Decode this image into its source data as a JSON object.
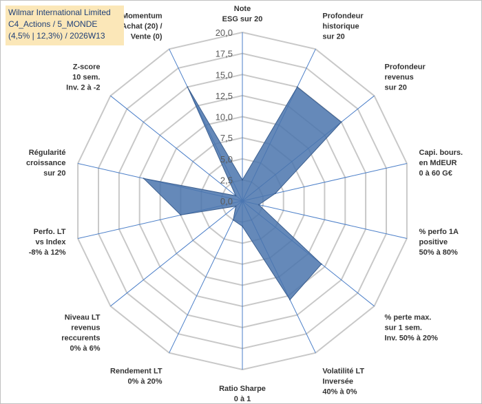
{
  "header": {
    "company": "Wilmar International Limited",
    "category": "C4_Actions / 5_MONDE",
    "stats": "(4,5% | 12,3%) / 2026W13"
  },
  "chart_data": {
    "type": "radar",
    "rmin": 0,
    "rmax": 20,
    "ticks": [
      "0,0",
      "2,5",
      "5,0",
      "7,5",
      "10,0",
      "12,5",
      "15,0",
      "17,5",
      "20,0"
    ],
    "grid": true,
    "axes": [
      {
        "label": [
          "Note",
          "ESG sur 20"
        ],
        "value": 2.5
      },
      {
        "label": [
          "Profondeur",
          "historique",
          "sur 20"
        ],
        "value": 15.0
      },
      {
        "label": [
          "Profondeur",
          "revenus",
          "sur 20"
        ],
        "value": 15.0
      },
      {
        "label": [
          "Capi. bours.",
          "en MdEUR",
          "0 à 60 G€"
        ],
        "value": 4.0
      },
      {
        "label": [
          "% perfo 1A",
          "positive",
          "50% à 80%"
        ],
        "value": 2.0
      },
      {
        "label": [
          "% perte max.",
          "sur 1 sem.",
          "Inv. 50% à 20%"
        ],
        "value": 12.0
      },
      {
        "label": [
          "Volatilité LT",
          "Inversée",
          "40% à 0%"
        ],
        "value": 13.0
      },
      {
        "label": [
          "Ratio Sharpe",
          "0 à 1"
        ],
        "value": 3.0
      },
      {
        "label": [
          "Rendement LT",
          "0% à 20%"
        ],
        "value": 2.5
      },
      {
        "label": [
          "Niveau LT",
          "revenus",
          "reccurents",
          "0% à 6%"
        ],
        "value": 1.0
      },
      {
        "label": [
          "Perfo. LT",
          "vs Index",
          "-8% à 12%"
        ],
        "value": 7.5
      },
      {
        "label": [
          "Régularité",
          "croissance",
          "sur 20"
        ],
        "value": 12.0
      },
      {
        "label": [
          "Z-score",
          "10 sem.",
          "Inv. 2 à -2"
        ],
        "value": 1.0
      },
      {
        "label": [
          "Momentum",
          "Achat (20) /",
          "Vente (0)"
        ],
        "value": 15.0
      }
    ],
    "colors": {
      "fill": "#4a74ad",
      "stroke": "#3c5f8f",
      "grid": "#c8c8c8",
      "spoke": "#4a7ec8"
    }
  }
}
